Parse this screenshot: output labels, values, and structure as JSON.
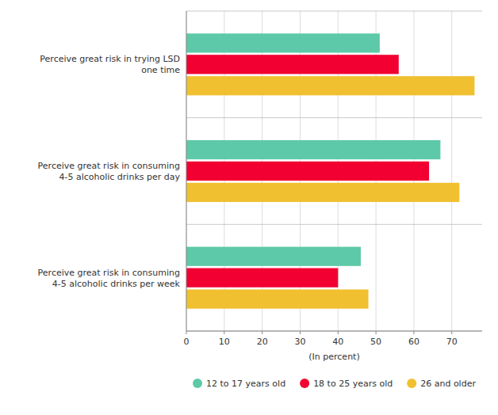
{
  "chart_data": {
    "type": "bar",
    "orientation": "horizontal",
    "categories": [
      "Perceive great risk in trying LSD\none time",
      "Perceive great risk in consuming\n4-5 alcoholic drinks per day",
      "Perceive great risk in consuming\n4-5 alcoholic drinks per week"
    ],
    "series": [
      {
        "name": "12 to 17 years old",
        "color": "#5DC9A8",
        "values": [
          51,
          67,
          46
        ]
      },
      {
        "name": "18 to 25 years old",
        "color": "#F20032",
        "values": [
          56,
          64,
          40
        ]
      },
      {
        "name": "26 and older",
        "color": "#F0C030",
        "values": [
          76,
          72,
          48
        ]
      }
    ],
    "xlabel": "(In percent)",
    "xlim": [
      0,
      78
    ],
    "xticks": [
      0,
      10,
      20,
      30,
      40,
      50,
      60,
      70
    ],
    "grid": true,
    "legend": "bottom"
  }
}
